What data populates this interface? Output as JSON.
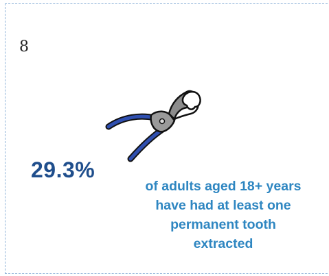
{
  "marker": "8",
  "icon": "dental-forceps-icon",
  "colors": {
    "stat_value": "#1f4e8c",
    "stat_desc": "#2e86c1",
    "handle": "#2f4fb0",
    "frame": "#8fb3d9"
  },
  "stat": {
    "value": "29.3%",
    "description": "of adults aged 18+ years\nhave had at least one\npermanent tooth\nextracted"
  }
}
